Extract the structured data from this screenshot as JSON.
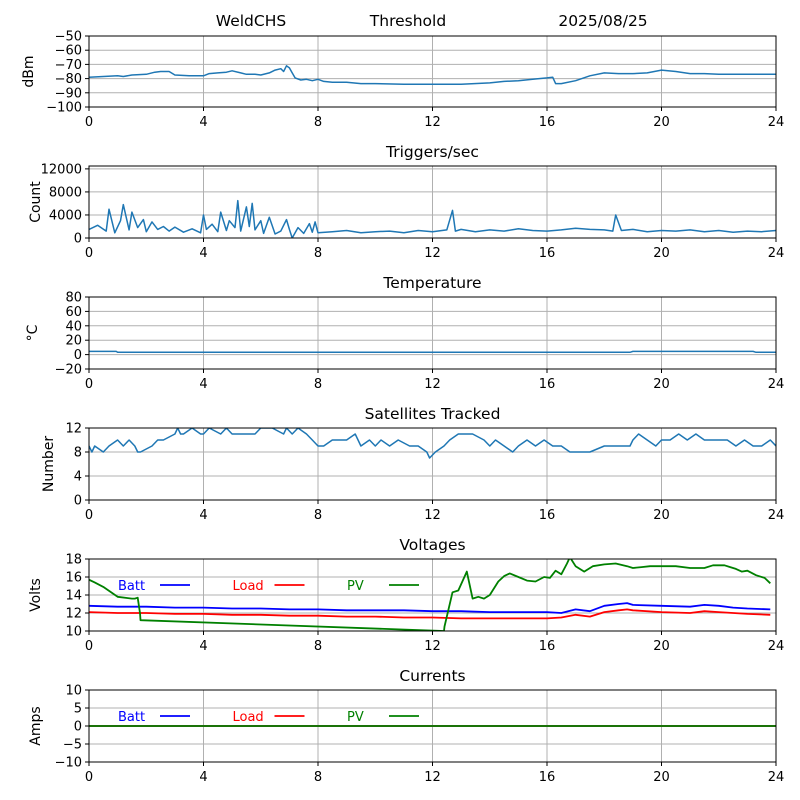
{
  "header": {
    "station": "WeldCHS",
    "mode": "Threshold",
    "date": "2025/08/25"
  },
  "x_ticks": [
    "0",
    "4",
    "8",
    "12",
    "16",
    "20",
    "24"
  ],
  "chart_data": [
    {
      "id": "threshold",
      "type": "line",
      "title": "",
      "xlabel": "",
      "ylabel": "dBm",
      "xlim": [
        0,
        24
      ],
      "ylim": [
        -100,
        -50
      ],
      "yticks": [
        -50,
        -60,
        -70,
        -80,
        -90,
        -100
      ],
      "ytick_labels": [
        "−50",
        "−60",
        "−70",
        "−80",
        "−90",
        "−100"
      ],
      "grid": true,
      "series": [
        {
          "color": "#1f77b4",
          "x": [
            0,
            0.5,
            1,
            1.2,
            1.5,
            2,
            2.3,
            2.5,
            2.8,
            3,
            3.5,
            4,
            4.2,
            4.5,
            4.8,
            5,
            5.3,
            5.5,
            5.8,
            6,
            6.3,
            6.5,
            6.7,
            6.8,
            6.9,
            7.0,
            7.1,
            7.2,
            7.4,
            7.6,
            7.8,
            8,
            8.2,
            8.5,
            9,
            9.5,
            10,
            11,
            12,
            13,
            14,
            14.5,
            15,
            15.5,
            16,
            16.2,
            16.3,
            16.5,
            17,
            17.5,
            18,
            18.5,
            19,
            19.5,
            20,
            20.5,
            21,
            21.5,
            22,
            22.5,
            23,
            24
          ],
          "y": [
            -79,
            -78.5,
            -78,
            -78.5,
            -77.5,
            -77,
            -75.5,
            -75,
            -75,
            -77.5,
            -78,
            -78,
            -76.5,
            -76,
            -75.5,
            -74.5,
            -76,
            -77,
            -77,
            -77.5,
            -76,
            -74,
            -73,
            -75,
            -71,
            -72.5,
            -76,
            -79.5,
            -81,
            -80.5,
            -81.5,
            -80.5,
            -82,
            -82.5,
            -82.5,
            -83.5,
            -83.5,
            -84,
            -84,
            -84,
            -83,
            -82,
            -81.5,
            -80.5,
            -79.5,
            -79,
            -83.5,
            -83.5,
            -81.5,
            -78,
            -76,
            -76.5,
            -76.5,
            -76,
            -74,
            -75,
            -76.5,
            -76.5,
            -77,
            -77,
            -77,
            -77
          ]
        }
      ]
    },
    {
      "id": "triggers",
      "type": "line",
      "title": "Triggers/sec",
      "xlabel": "",
      "ylabel": "Count",
      "xlim": [
        0,
        24
      ],
      "ylim": [
        0,
        12500
      ],
      "yticks": [
        0,
        4000,
        8000,
        12000
      ],
      "ytick_labels": [
        "0",
        "4000",
        "8000",
        "12000"
      ],
      "grid": true,
      "series": [
        {
          "color": "#1f77b4",
          "x": [
            0,
            0.3,
            0.6,
            0.7,
            0.9,
            1.1,
            1.2,
            1.4,
            1.5,
            1.7,
            1.9,
            2.0,
            2.2,
            2.4,
            2.6,
            2.8,
            3.0,
            3.3,
            3.6,
            3.9,
            4.0,
            4.1,
            4.3,
            4.5,
            4.6,
            4.8,
            4.9,
            5.1,
            5.2,
            5.3,
            5.5,
            5.6,
            5.7,
            5.8,
            6.0,
            6.1,
            6.3,
            6.5,
            6.7,
            6.9,
            7.0,
            7.1,
            7.3,
            7.5,
            7.7,
            7.8,
            7.9,
            8.0,
            8.5,
            9,
            9.5,
            10,
            10.5,
            11,
            11.5,
            12,
            12.5,
            12.7,
            12.8,
            13,
            13.5,
            14,
            14.5,
            15,
            15.5,
            16,
            16.5,
            17,
            17.5,
            18,
            18.3,
            18.4,
            18.6,
            19,
            19.5,
            20,
            20.5,
            21,
            21.5,
            22,
            22.5,
            23,
            23.5,
            24
          ],
          "y": [
            1500,
            2200,
            1200,
            5000,
            900,
            3000,
            5800,
            1400,
            4500,
            1800,
            3200,
            1100,
            2800,
            1500,
            2000,
            1200,
            1900,
            1000,
            1600,
            900,
            4000,
            1500,
            2400,
            1100,
            4500,
            1300,
            3000,
            1800,
            6500,
            1200,
            5400,
            2000,
            6000,
            1400,
            3000,
            800,
            3600,
            700,
            1200,
            3200,
            1500,
            0,
            1800,
            800,
            2500,
            1000,
            2800,
            900,
            1100,
            1300,
            900,
            1100,
            1200,
            900,
            1300,
            1100,
            1400,
            4800,
            1200,
            1500,
            1100,
            1400,
            1200,
            1600,
            1300,
            1200,
            1400,
            1700,
            1500,
            1400,
            1200,
            4000,
            1300,
            1500,
            1100,
            1300,
            1200,
            1400,
            1100,
            1300,
            1000,
            1200,
            1100,
            1300
          ]
        }
      ]
    },
    {
      "id": "temperature",
      "type": "line",
      "title": "Temperature",
      "xlabel": "",
      "ylabel": "°C",
      "xlim": [
        0,
        24
      ],
      "ylim": [
        -20,
        80
      ],
      "yticks": [
        -20,
        0,
        20,
        40,
        60,
        80
      ],
      "ytick_labels": [
        "−20",
        "0",
        "20",
        "40",
        "60",
        "80"
      ],
      "grid": true,
      "series": [
        {
          "color": "#1f77b4",
          "x": [
            0,
            0.95,
            1.0,
            18.9,
            19.0,
            23.2,
            23.3,
            24
          ],
          "y": [
            4.5,
            4.5,
            3.2,
            3.2,
            4.5,
            4.5,
            3.2,
            3.2
          ]
        }
      ]
    },
    {
      "id": "satellites",
      "type": "line",
      "title": "Satellites Tracked",
      "xlabel": "",
      "ylabel": "Number",
      "xlim": [
        0,
        24
      ],
      "ylim": [
        0,
        12
      ],
      "yticks": [
        0,
        4,
        8,
        12
      ],
      "ytick_labels": [
        "0",
        "4",
        "8",
        "12"
      ],
      "grid": true,
      "series": [
        {
          "color": "#1f77b4",
          "x": [
            0,
            0.1,
            0.2,
            0.5,
            0.7,
            1.0,
            1.2,
            1.4,
            1.6,
            1.7,
            1.8,
            2.2,
            2.4,
            2.6,
            3.0,
            3.1,
            3.2,
            3.3,
            3.6,
            3.9,
            4.0,
            4.2,
            4.6,
            4.8,
            5.0,
            5.5,
            5.8,
            6.0,
            6.4,
            6.8,
            6.9,
            7.1,
            7.3,
            7.6,
            7.8,
            8.0,
            8.2,
            8.5,
            9.0,
            9.3,
            9.5,
            9.8,
            10.0,
            10.2,
            10.5,
            10.8,
            11.2,
            11.5,
            11.8,
            11.9,
            12.1,
            12.4,
            12.6,
            12.9,
            13.1,
            13.4,
            13.8,
            14.0,
            14.2,
            14.5,
            14.8,
            15.0,
            15.3,
            15.6,
            15.9,
            16.2,
            16.5,
            16.8,
            17.0,
            17.5,
            18.0,
            18.5,
            18.9,
            19.0,
            19.2,
            19.5,
            19.8,
            20.0,
            20.3,
            20.6,
            20.9,
            21.2,
            21.5,
            21.9,
            22.3,
            22.6,
            22.9,
            23.2,
            23.5,
            23.8,
            24
          ],
          "y": [
            9,
            8,
            9,
            8,
            9,
            10,
            9,
            10,
            9,
            8,
            8,
            9,
            10,
            10,
            11,
            12,
            11,
            11,
            12,
            11,
            11,
            12,
            11,
            12,
            11,
            11,
            11,
            12,
            12,
            11,
            12,
            11,
            12,
            11,
            10,
            9,
            9,
            10,
            10,
            11,
            9,
            10,
            9,
            10,
            9,
            10,
            9,
            9,
            8,
            7,
            8,
            9,
            10,
            11,
            11,
            11,
            10,
            9,
            10,
            9,
            8,
            9,
            10,
            9,
            10,
            9,
            9,
            8,
            8,
            8,
            9,
            9,
            9,
            10,
            11,
            10,
            9,
            10,
            10,
            11,
            10,
            11,
            10,
            10,
            10,
            9,
            10,
            9,
            9,
            10,
            9
          ]
        }
      ]
    },
    {
      "id": "voltages",
      "type": "line",
      "title": "Voltages",
      "xlabel": "",
      "ylabel": "Volts",
      "xlim": [
        0,
        24
      ],
      "ylim": [
        10,
        18
      ],
      "yticks": [
        10,
        12,
        14,
        16,
        18
      ],
      "ytick_labels": [
        "10",
        "12",
        "14",
        "16",
        "18"
      ],
      "grid": true,
      "legend": "inside, upper-left, horizontal",
      "series": [
        {
          "name": "Batt",
          "color": "#0000ff",
          "x": [
            0,
            1,
            2,
            3,
            4,
            5,
            6,
            7,
            8,
            9,
            10,
            11,
            12,
            13,
            14,
            15,
            16,
            16.5,
            17,
            17.5,
            18,
            18.5,
            18.8,
            19,
            20,
            21,
            21.5,
            22,
            22.5,
            23,
            23.8
          ],
          "y": [
            12.8,
            12.7,
            12.7,
            12.6,
            12.6,
            12.5,
            12.5,
            12.4,
            12.4,
            12.3,
            12.3,
            12.3,
            12.2,
            12.2,
            12.1,
            12.1,
            12.1,
            12.0,
            12.4,
            12.2,
            12.8,
            13.0,
            13.1,
            12.9,
            12.8,
            12.7,
            12.9,
            12.8,
            12.6,
            12.5,
            12.4
          ]
        },
        {
          "name": "Load",
          "color": "#ff0000",
          "x": [
            0,
            1,
            2,
            3,
            4,
            5,
            6,
            7,
            8,
            9,
            10,
            11,
            12,
            13,
            14,
            15,
            16,
            16.5,
            17,
            17.5,
            18,
            18.5,
            18.8,
            19,
            20,
            21,
            21.5,
            22,
            22.5,
            23,
            23.8
          ],
          "y": [
            12.1,
            12.0,
            12.0,
            11.9,
            11.9,
            11.8,
            11.8,
            11.7,
            11.7,
            11.6,
            11.6,
            11.5,
            11.5,
            11.4,
            11.4,
            11.4,
            11.4,
            11.5,
            11.8,
            11.6,
            12.1,
            12.3,
            12.4,
            12.3,
            12.1,
            12.0,
            12.2,
            12.1,
            12.0,
            11.9,
            11.8
          ]
        },
        {
          "name": "PV",
          "color": "#008000",
          "x": [
            0,
            0.2,
            0.5,
            1.0,
            1.5,
            1.6,
            1.7,
            1.78,
            1.8,
            12.4,
            12.42,
            12.7,
            12.9,
            13.2,
            13.4,
            13.6,
            13.8,
            14.0,
            14.3,
            14.5,
            14.7,
            15.0,
            15.3,
            15.6,
            15.9,
            16.1,
            16.3,
            16.5,
            16.7,
            16.8,
            17.0,
            17.3,
            17.6,
            18.0,
            18.4,
            18.8,
            19.0,
            19.3,
            19.6,
            20.0,
            20.5,
            21.0,
            21.5,
            21.8,
            22.2,
            22.4,
            22.6,
            22.8,
            23.0,
            23.3,
            23.6,
            23.8
          ],
          "y": [
            15.7,
            15.4,
            14.9,
            13.8,
            13.6,
            13.6,
            13.7,
            12.0,
            11.2,
            10.0,
            10.5,
            14.3,
            14.5,
            16.6,
            13.6,
            13.8,
            13.6,
            14.0,
            15.5,
            16.1,
            16.4,
            16.0,
            15.6,
            15.5,
            16.0,
            15.9,
            16.7,
            16.3,
            17.5,
            18.2,
            17.2,
            16.6,
            17.2,
            17.4,
            17.5,
            17.2,
            17.0,
            17.1,
            17.2,
            17.2,
            17.2,
            17.0,
            17.0,
            17.3,
            17.3,
            17.1,
            16.9,
            16.6,
            16.7,
            16.2,
            15.9,
            15.3
          ]
        }
      ]
    },
    {
      "id": "currents",
      "type": "line",
      "title": "Currents",
      "xlabel": "",
      "ylabel": "Amps",
      "xlim": [
        0,
        24
      ],
      "ylim": [
        -10,
        10
      ],
      "yticks": [
        -10,
        -5,
        0,
        5,
        10
      ],
      "ytick_labels": [
        "−10",
        "−5",
        "0",
        "5",
        "10"
      ],
      "grid": true,
      "legend": "inside, upper-left, horizontal",
      "series": [
        {
          "name": "Batt",
          "color": "#0000ff",
          "x": [
            0,
            24
          ],
          "y": [
            0,
            0
          ]
        },
        {
          "name": "Load",
          "color": "#ff0000",
          "x": [
            0,
            24
          ],
          "y": [
            0,
            0
          ]
        },
        {
          "name": "PV",
          "color": "#008000",
          "x": [
            0,
            24
          ],
          "y": [
            0,
            0
          ]
        }
      ]
    }
  ]
}
